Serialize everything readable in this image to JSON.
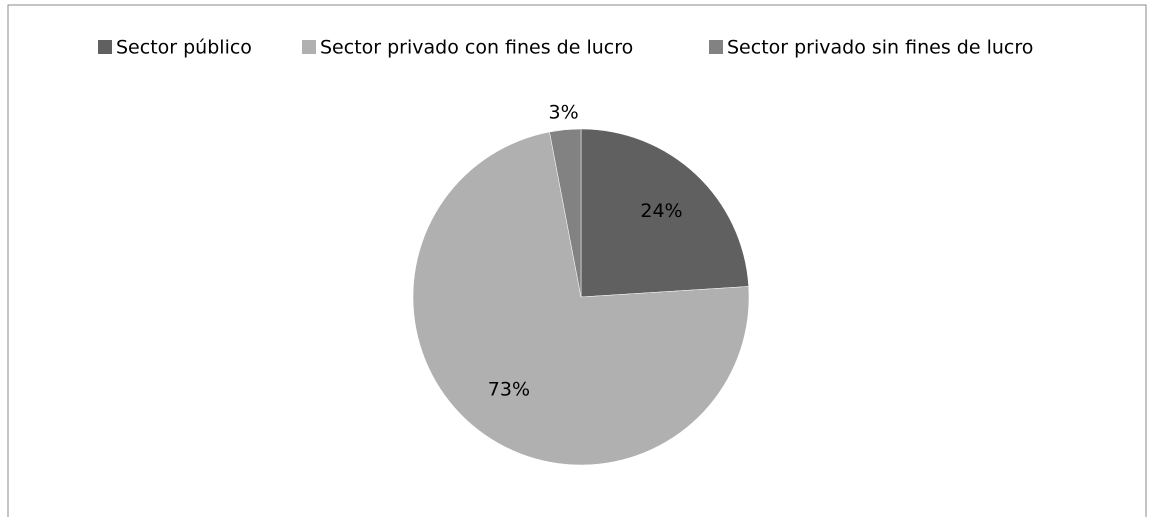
{
  "chart_data": {
    "type": "pie",
    "categories": [
      "Sector público",
      "Sector privado con fines de lucro",
      "Sector privado sin fines de lucro"
    ],
    "values": [
      24,
      73,
      3
    ],
    "value_labels": [
      "24%",
      "73%",
      "3%"
    ],
    "colors": [
      "#606060",
      "#b0b0b0",
      "#828282"
    ],
    "legend": "top"
  }
}
